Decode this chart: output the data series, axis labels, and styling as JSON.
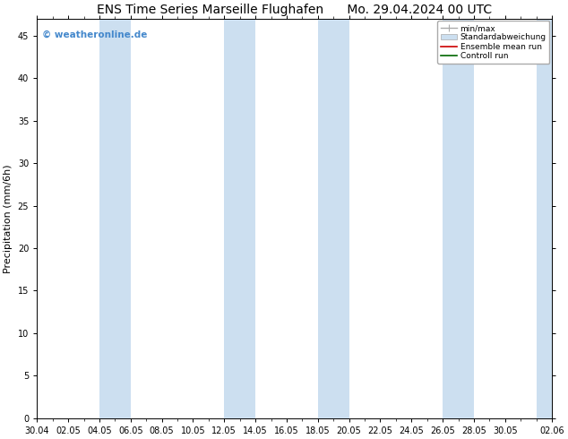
{
  "title_left": "ENS Time Series Marseille Flughafen",
  "title_right": "Mo. 29.04.2024 00 UTC",
  "ylabel": "Precipitation (mm/6h)",
  "ylim": [
    0,
    47
  ],
  "yticks": [
    0,
    5,
    10,
    15,
    20,
    25,
    30,
    35,
    40,
    45
  ],
  "xtick_labels": [
    "30.04",
    "02.05",
    "04.05",
    "06.05",
    "08.05",
    "10.05",
    "12.05",
    "14.05",
    "16.05",
    "18.05",
    "20.05",
    "22.05",
    "24.05",
    "26.05",
    "28.05",
    "30.05",
    "02.06"
  ],
  "xtick_positions": [
    0,
    2,
    4,
    6,
    8,
    10,
    12,
    14,
    16,
    18,
    20,
    22,
    24,
    26,
    28,
    30,
    33
  ],
  "shaded_bands": [
    [
      4,
      6
    ],
    [
      12,
      14
    ],
    [
      18,
      20
    ],
    [
      26,
      28
    ],
    [
      32,
      34
    ]
  ],
  "band_color": "#ccdff0",
  "background_color": "#ffffff",
  "watermark": "© weatheronline.de",
  "watermark_color": "#4488cc",
  "title_fontsize": 10,
  "axis_fontsize": 7,
  "legend_entries": [
    "min/max",
    "Standardabweichung",
    "Ensemble mean run",
    "Controll run"
  ],
  "xmin": 0,
  "xmax": 33
}
